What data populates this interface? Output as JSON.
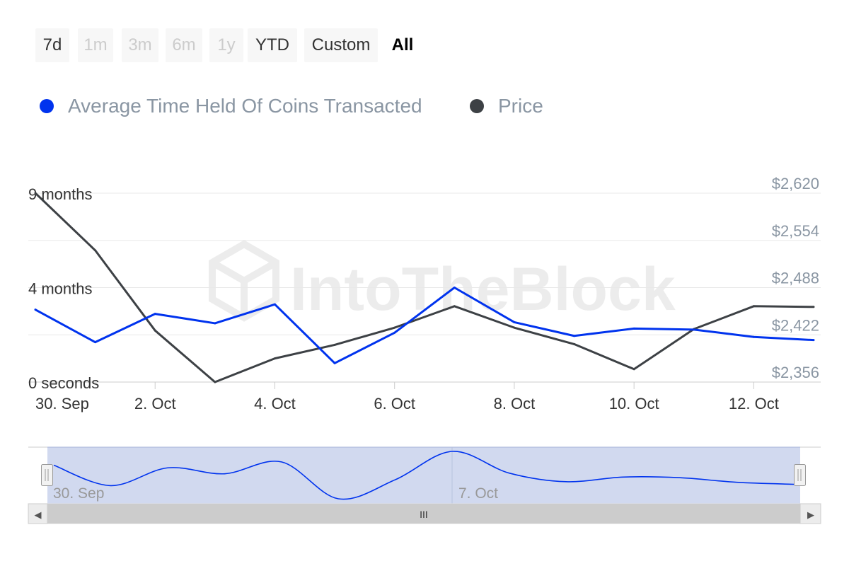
{
  "range_selector": {
    "buttons": [
      {
        "label": "7d",
        "state": "normal"
      },
      {
        "label": "1m",
        "state": "disabled"
      },
      {
        "label": "3m",
        "state": "disabled"
      },
      {
        "label": "6m",
        "state": "disabled"
      },
      {
        "label": "1y",
        "state": "disabled"
      },
      {
        "label": "YTD",
        "state": "normal"
      },
      {
        "label": "Custom",
        "state": "normal"
      },
      {
        "label": "All",
        "state": "active"
      }
    ]
  },
  "watermark": "IntoTheBlock",
  "colors": {
    "avg_time_series": "#0033ee",
    "price_series": "#3d4145",
    "grid": "#e8e8e8",
    "axis_text": "#333333",
    "right_axis_text": "#8a96a3",
    "navigator_fill": "#cfd7ee",
    "scrollbar": "#cccccc"
  },
  "chart_data": {
    "type": "line",
    "legend_position": "top-left",
    "grid": true,
    "x": [
      "2024-09-30",
      "2024-10-01",
      "2024-10-02",
      "2024-10-03",
      "2024-10-04",
      "2024-10-05",
      "2024-10-06",
      "2024-10-07",
      "2024-10-08",
      "2024-10-09",
      "2024-10-10",
      "2024-10-11",
      "2024-10-12",
      "2024-10-13"
    ],
    "x_ticks": [
      "30. Sep",
      "2. Oct",
      "4. Oct",
      "6. Oct",
      "8. Oct",
      "10. Oct",
      "12. Oct"
    ],
    "y_left": {
      "tick_labels": [
        "0 seconds",
        "4 months",
        "9 months"
      ],
      "range_months": [
        0,
        9
      ]
    },
    "y_right": {
      "tick_labels": [
        "$2,356",
        "$2,422",
        "$2,488",
        "$2,554",
        "$2,620"
      ],
      "range": [
        2356,
        2620
      ]
    },
    "series": [
      {
        "name": "Average Time Held Of Coins Transacted",
        "axis": "left",
        "unit": "months",
        "values": [
          3.45,
          1.9,
          3.25,
          2.8,
          3.7,
          0.9,
          2.35,
          4.5,
          2.85,
          2.2,
          2.55,
          2.5,
          2.15,
          2.0
        ]
      },
      {
        "name": "Price",
        "axis": "right",
        "unit": "USD",
        "values": [
          2620,
          2540,
          2428,
          2356,
          2389,
          2408,
          2432,
          2462,
          2432,
          2409,
          2374,
          2430,
          2462,
          2461
        ]
      }
    ]
  },
  "navigator": {
    "labels": [
      "30. Sep",
      "7. Oct"
    ],
    "scroll_center_glyph": "III",
    "scroll_left_glyph": "◀",
    "scroll_right_glyph": "▶"
  }
}
